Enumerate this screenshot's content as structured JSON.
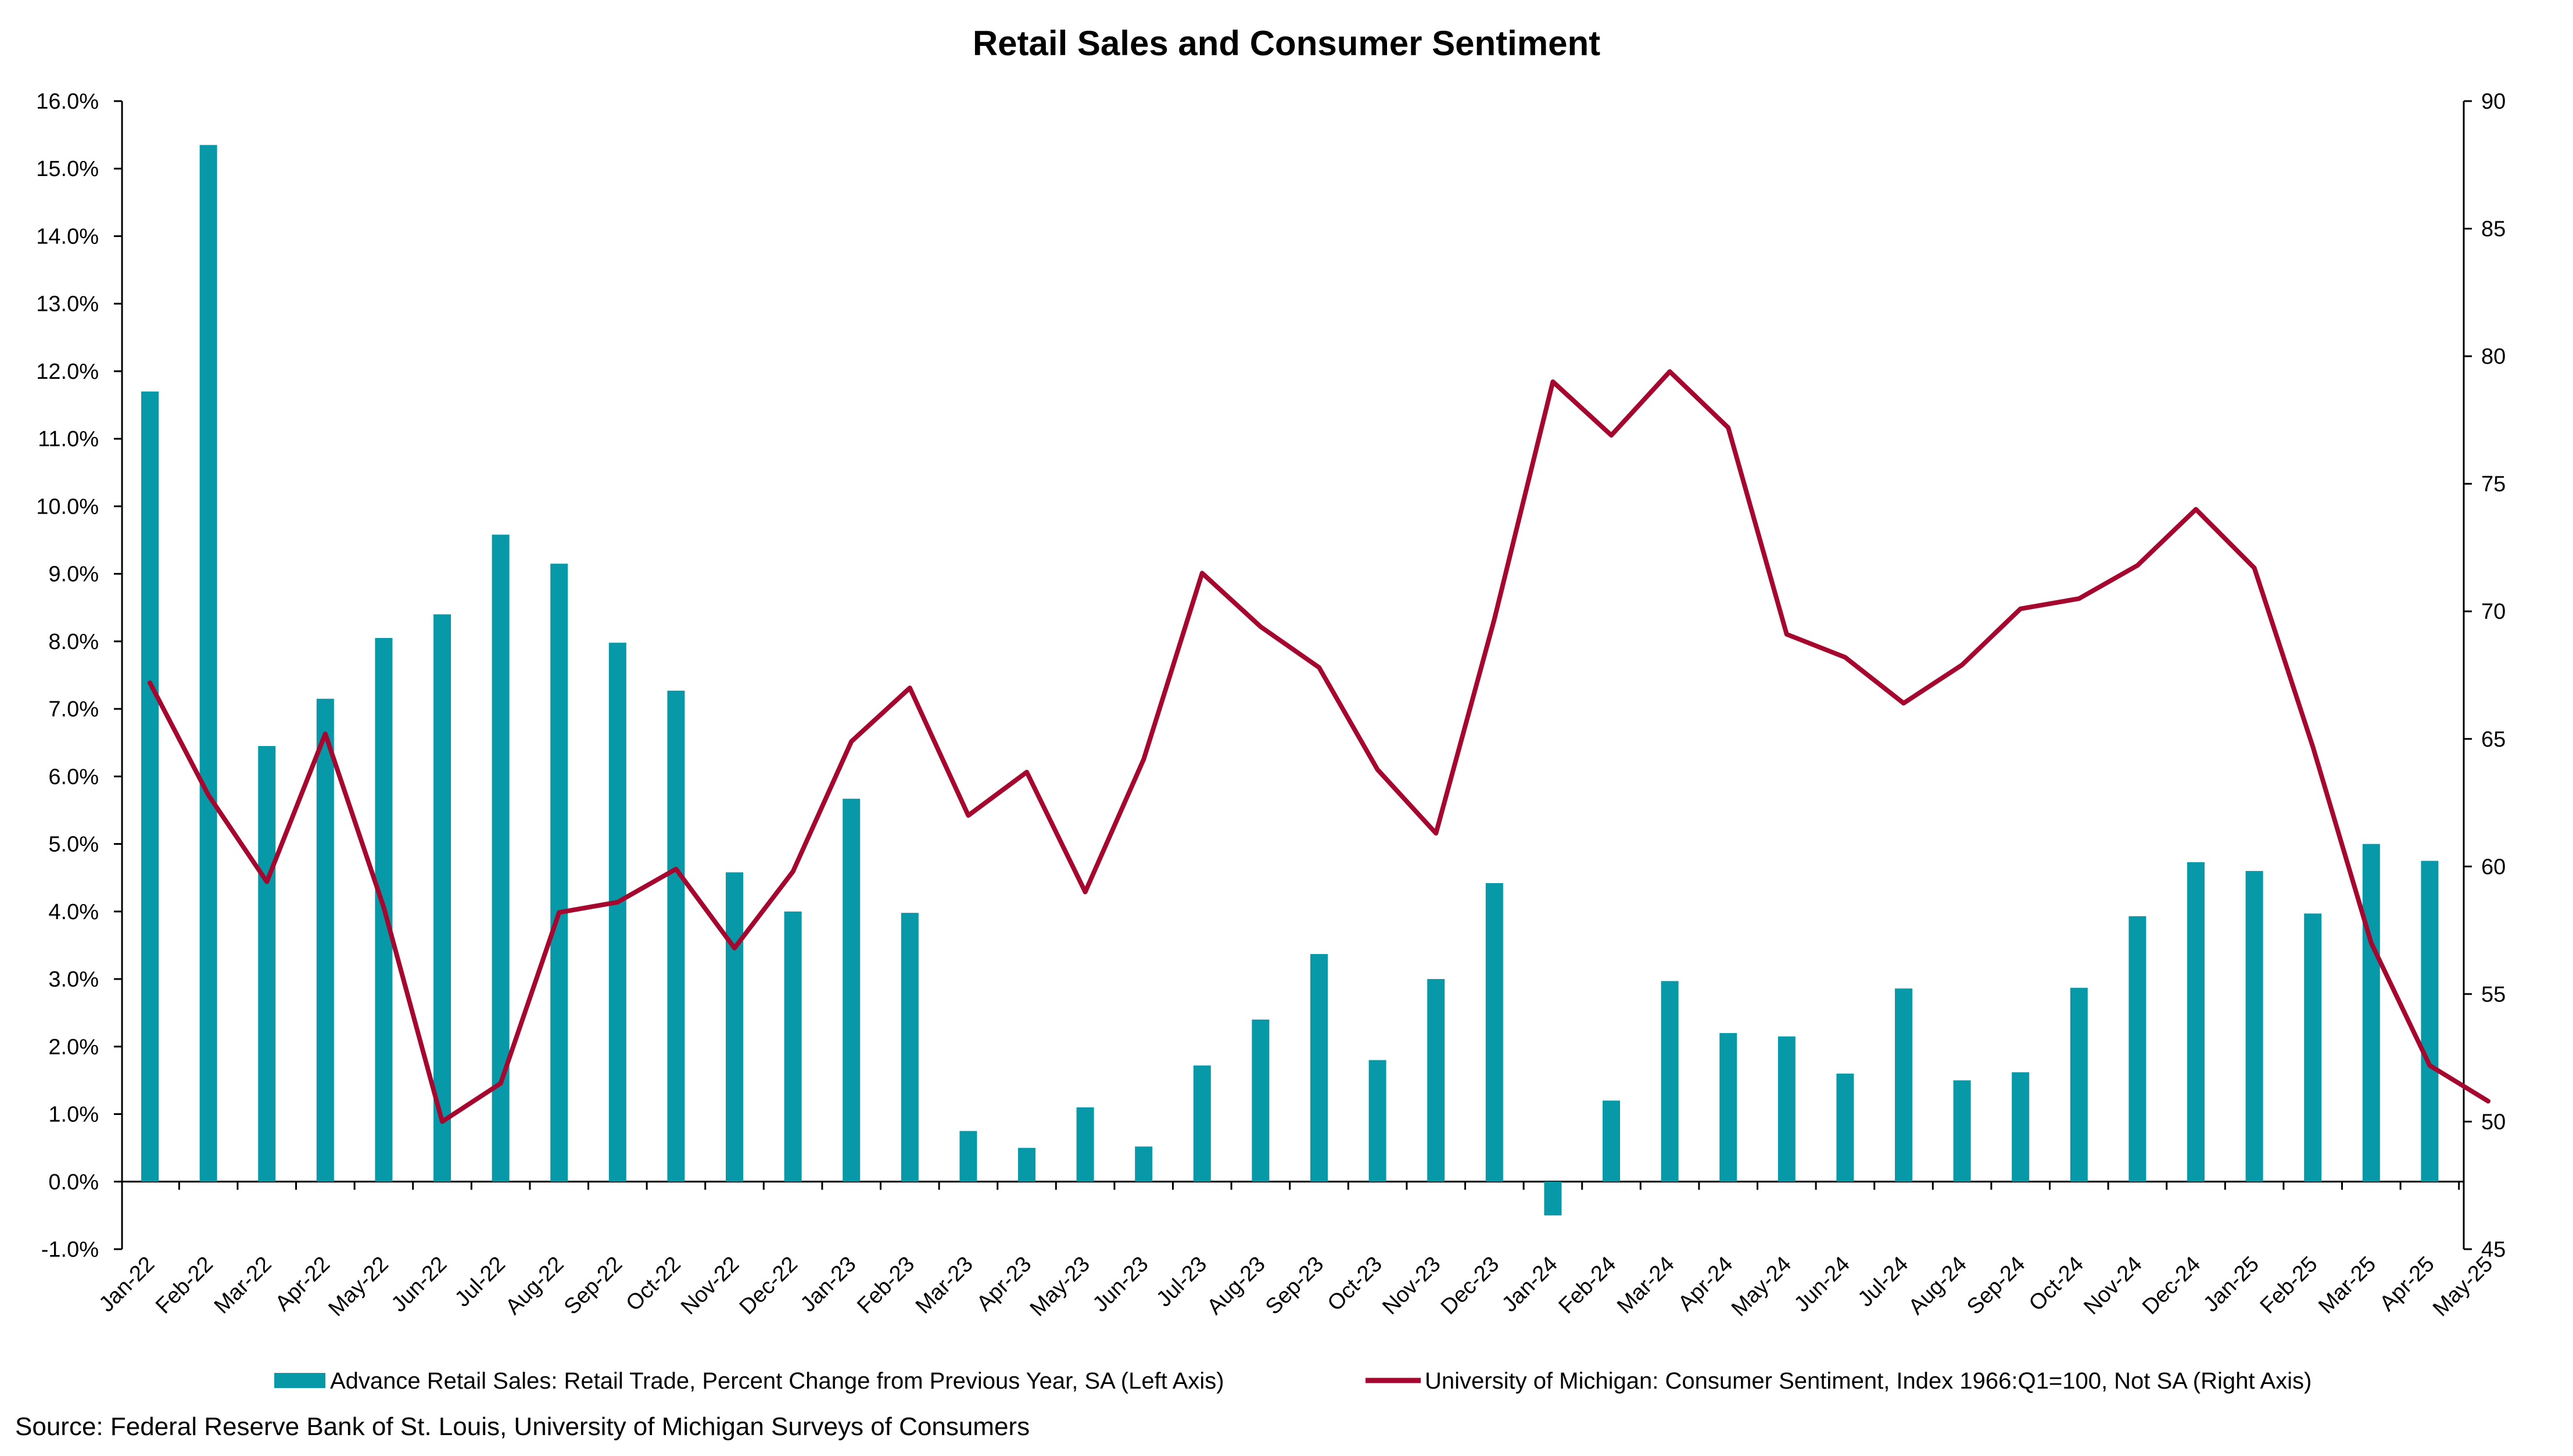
{
  "chart_data": {
    "type": "bar+line",
    "title": "Retail Sales and Consumer Sentiment",
    "source": "Source: Federal Reserve Bank of St. Louis, University of Michigan Surveys of Consumers",
    "categories": [
      "Jan-22",
      "Feb-22",
      "Mar-22",
      "Apr-22",
      "May-22",
      "Jun-22",
      "Jul-22",
      "Aug-22",
      "Sep-22",
      "Oct-22",
      "Nov-22",
      "Dec-22",
      "Jan-23",
      "Feb-23",
      "Mar-23",
      "Apr-23",
      "May-23",
      "Jun-23",
      "Jul-23",
      "Aug-23",
      "Sep-23",
      "Oct-23",
      "Nov-23",
      "Dec-23",
      "Jan-24",
      "Feb-24",
      "Mar-24",
      "Apr-24",
      "May-24",
      "Jun-24",
      "Jul-24",
      "Aug-24",
      "Sep-24",
      "Oct-24",
      "Nov-24",
      "Dec-24",
      "Jan-25",
      "Feb-25",
      "Mar-25",
      "Apr-25",
      "May-25"
    ],
    "left_axis": {
      "min": -1.0,
      "max": 16.0,
      "step": 1.0,
      "format": "percent1"
    },
    "right_axis": {
      "min": 45,
      "max": 90,
      "step": 5
    },
    "series": [
      {
        "name": "Advance Retail Sales: Retail Trade, Percent Change from Previous Year, SA (Left Axis)",
        "type": "bar",
        "axis": "left",
        "color": "#0899A8",
        "values": [
          11.7,
          15.35,
          6.45,
          7.15,
          8.05,
          8.4,
          9.58,
          9.15,
          7.98,
          7.27,
          4.58,
          4.0,
          5.67,
          3.98,
          0.75,
          0.5,
          1.1,
          0.52,
          1.72,
          2.4,
          3.37,
          1.8,
          3.0,
          4.42,
          -0.5,
          1.2,
          2.97,
          2.2,
          2.15,
          1.6,
          2.86,
          1.5,
          1.62,
          2.87,
          3.93,
          4.73,
          4.6,
          3.97,
          5.0,
          4.75,
          null
        ]
      },
      {
        "name": "University of Michigan: Consumer Sentiment, Index 1966:Q1=100, Not SA (Right Axis)",
        "type": "line",
        "axis": "right",
        "color": "#A6072F",
        "values": [
          67.2,
          62.8,
          59.4,
          65.2,
          58.4,
          50.0,
          51.5,
          58.2,
          58.6,
          59.9,
          56.8,
          59.8,
          64.9,
          67.0,
          62.0,
          63.7,
          59.0,
          64.2,
          71.5,
          69.4,
          67.8,
          63.8,
          61.3,
          69.7,
          79.0,
          76.9,
          79.4,
          77.2,
          69.1,
          68.2,
          66.4,
          67.9,
          70.1,
          70.5,
          71.8,
          74.0,
          71.7,
          64.7,
          57.0,
          52.2,
          50.8
        ]
      }
    ]
  }
}
